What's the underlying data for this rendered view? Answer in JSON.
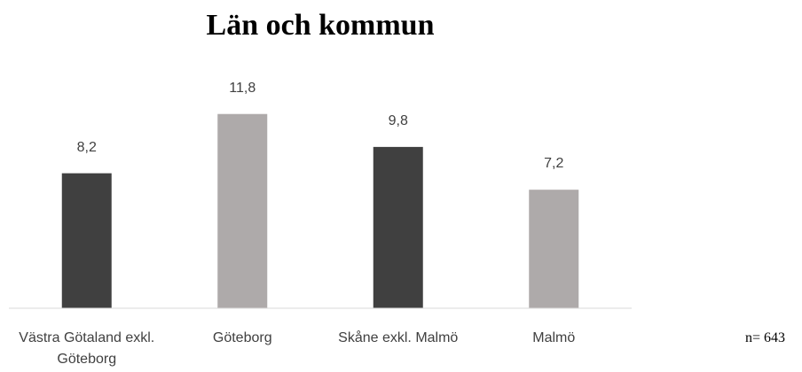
{
  "chart_data": {
    "type": "bar",
    "title": "Län och kommun",
    "categories": [
      "Västra Götaland exkl. Göteborg",
      "Göteborg",
      "Skåne exkl. Malmö",
      "Malmö"
    ],
    "values": [
      8.2,
      11.8,
      9.8,
      7.2
    ],
    "value_labels": [
      "8,2",
      "11,8",
      "9,8",
      "7,2"
    ],
    "colors": [
      "#404040",
      "#aeaaaa",
      "#404040",
      "#aeaaaa"
    ],
    "ylim": [
      0,
      12
    ],
    "annotation": "n= 643"
  }
}
